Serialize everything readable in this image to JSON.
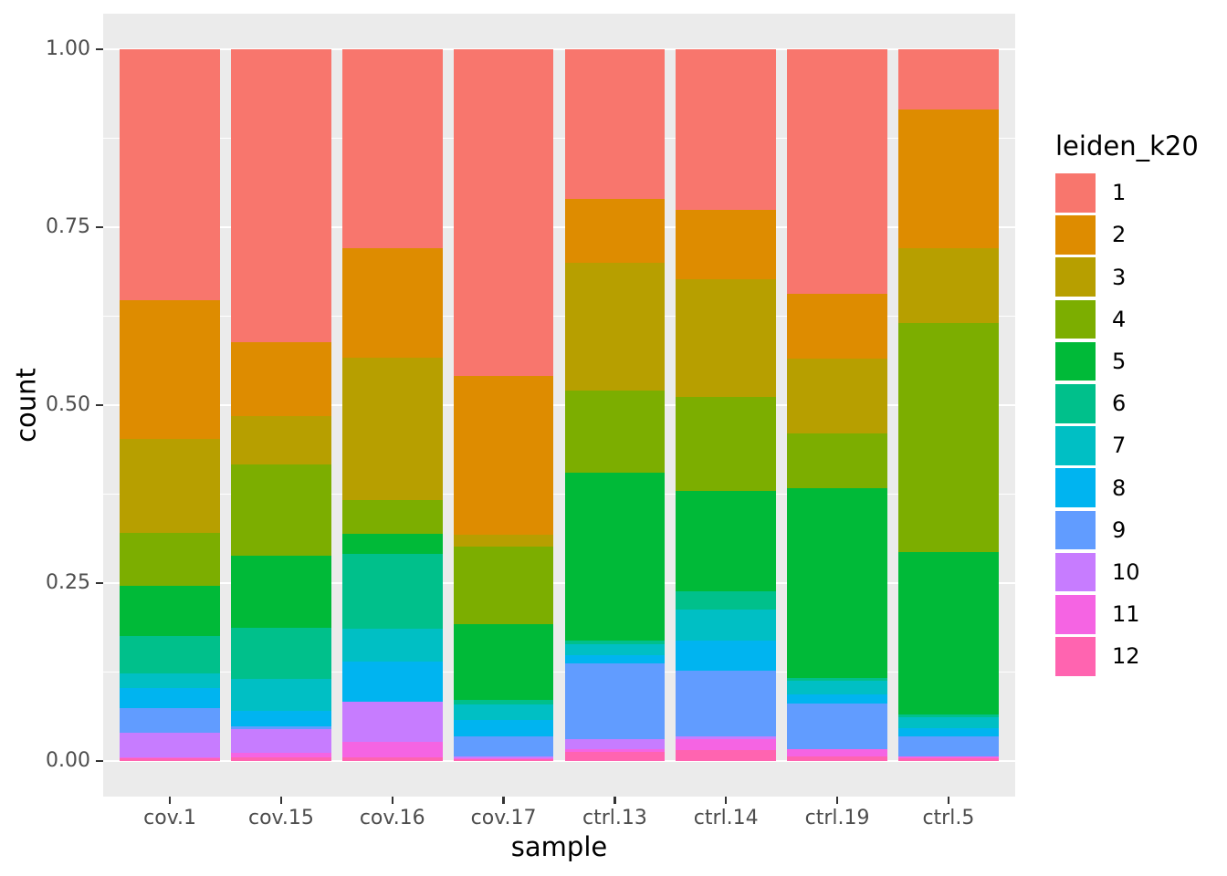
{
  "chart_data": {
    "type": "bar",
    "subtype": "stacked-normalized-vertical",
    "title": "",
    "xlabel": "sample",
    "ylabel": "count",
    "legend_title": "leiden_k20",
    "legend_position": "right",
    "grid": true,
    "ylim": [
      0,
      1
    ],
    "y_ticks": [
      {
        "value": 0.0,
        "label": "0.00"
      },
      {
        "value": 0.25,
        "label": "0.25"
      },
      {
        "value": 0.5,
        "label": "0.50"
      },
      {
        "value": 0.75,
        "label": "0.75"
      },
      {
        "value": 1.0,
        "label": "1.00"
      }
    ],
    "y_minor_ticks": [
      0.125,
      0.375,
      0.625,
      0.875
    ],
    "categories": [
      "cov.1",
      "cov.15",
      "cov.16",
      "cov.17",
      "ctrl.13",
      "ctrl.14",
      "ctrl.19",
      "ctrl.5"
    ],
    "series": [
      {
        "name": "1",
        "color": "#F8766D",
        "values": [
          0.353,
          0.412,
          0.28,
          0.459,
          0.211,
          0.226,
          0.344,
          0.084
        ]
      },
      {
        "name": "2",
        "color": "#DE8C00",
        "values": [
          0.195,
          0.104,
          0.154,
          0.223,
          0.089,
          0.097,
          0.09,
          0.195
        ]
      },
      {
        "name": "3",
        "color": "#B79F00",
        "values": [
          0.131,
          0.067,
          0.2,
          0.016,
          0.18,
          0.165,
          0.106,
          0.105
        ]
      },
      {
        "name": "4",
        "color": "#7CAE00",
        "values": [
          0.075,
          0.129,
          0.048,
          0.109,
          0.116,
          0.133,
          0.077,
          0.323
        ]
      },
      {
        "name": "5",
        "color": "#00BA38",
        "values": [
          0.07,
          0.101,
          0.028,
          0.106,
          0.235,
          0.141,
          0.266,
          0.228
        ]
      },
      {
        "name": "6",
        "color": "#00C08B",
        "values": [
          0.053,
          0.071,
          0.105,
          0.006,
          0.006,
          0.025,
          0.004,
          0.003
        ]
      },
      {
        "name": "7",
        "color": "#00BFC4",
        "values": [
          0.02,
          0.046,
          0.046,
          0.023,
          0.015,
          0.044,
          0.02,
          0.016
        ]
      },
      {
        "name": "8",
        "color": "#00B4F0",
        "values": [
          0.028,
          0.021,
          0.056,
          0.022,
          0.012,
          0.042,
          0.012,
          0.012
        ]
      },
      {
        "name": "9",
        "color": "#619CFF",
        "values": [
          0.035,
          0.004,
          0.0,
          0.028,
          0.106,
          0.093,
          0.064,
          0.027
        ]
      },
      {
        "name": "10",
        "color": "#C77CFF",
        "values": [
          0.035,
          0.034,
          0.057,
          0.003,
          0.014,
          0.003,
          0.0,
          0.0
        ]
      },
      {
        "name": "11",
        "color": "#F564E3",
        "values": [
          0.001,
          0.006,
          0.022,
          0.002,
          0.004,
          0.016,
          0.011,
          0.003
        ]
      },
      {
        "name": "12",
        "color": "#FF64B0",
        "values": [
          0.004,
          0.005,
          0.005,
          0.002,
          0.013,
          0.015,
          0.006,
          0.004
        ]
      }
    ]
  },
  "colors": {
    "page_bg": "#FFFFFF",
    "panel_bg": "#EBEBEB",
    "grid": "#FFFFFF",
    "tick_label": "#4D4D4D",
    "axis_title": "#000000",
    "tick_mark": "#333333"
  }
}
